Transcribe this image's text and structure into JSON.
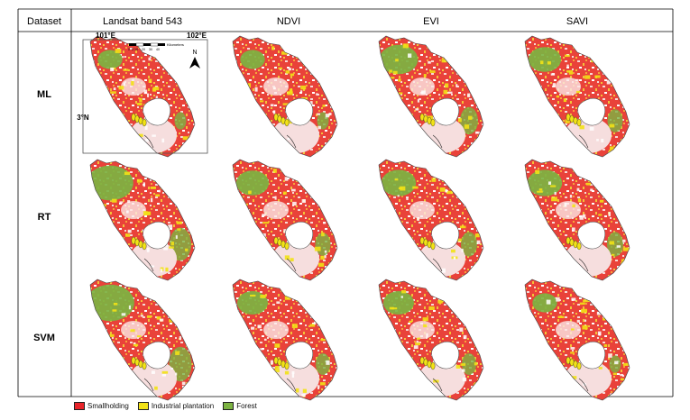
{
  "table": {
    "corner_header": "Dataset",
    "columns": [
      "Landsat band 543",
      "NDVI",
      "EVI",
      "SAVI"
    ],
    "rows": [
      "ML",
      "RT",
      "SVM"
    ]
  },
  "inset": {
    "lon_left": "101°E",
    "lon_right": "102°E",
    "lat": "3°N",
    "north": "N",
    "scale_label": "Kilometers",
    "scale_ticks": [
      "0",
      "5",
      "10",
      "20",
      "30",
      "40"
    ]
  },
  "legend": [
    {
      "label": "Smallholding",
      "color": "#e8242a"
    },
    {
      "label": "Industrial plantation",
      "color": "#f2e216"
    },
    {
      "label": "Forest",
      "color": "#7cb342"
    }
  ],
  "colors": {
    "smallholding": "#e8242a",
    "industrial": "#f2e216",
    "forest": "#7cb342",
    "bare": "#f6dede",
    "grid": "#000000"
  }
}
